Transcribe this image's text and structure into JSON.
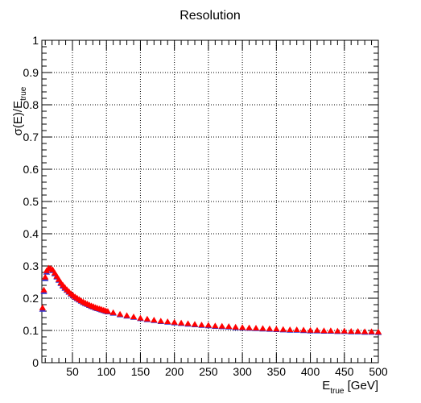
{
  "chart_data": {
    "type": "scatter",
    "title": "Resolution",
    "ylabel": {
      "main": "σ(E)/E",
      "sub": "true"
    },
    "xlabel": {
      "main": "E",
      "sub": "true",
      "unit": " [GeV]"
    },
    "xlim": [
      5,
      500
    ],
    "ylim": [
      0,
      1
    ],
    "x_ticks": [
      50,
      100,
      150,
      200,
      250,
      300,
      350,
      400,
      450,
      500
    ],
    "y_ticks": [
      "0",
      "0.1",
      "0.2",
      "0.3",
      "0.4",
      "0.5",
      "0.6",
      "0.7",
      "0.8",
      "0.9",
      "1"
    ],
    "grid": true,
    "series": [
      {
        "color": "#3333cc",
        "marker": "triangle-up",
        "points": [
          [
            6,
            0.165
          ],
          [
            8,
            0.22
          ],
          [
            10,
            0.26
          ],
          [
            12,
            0.28
          ],
          [
            15,
            0.29
          ],
          [
            18,
            0.29
          ],
          [
            21,
            0.285
          ],
          [
            24,
            0.275
          ],
          [
            27,
            0.265
          ],
          [
            30,
            0.255
          ],
          [
            33,
            0.245
          ],
          [
            36,
            0.237
          ],
          [
            39,
            0.23
          ],
          [
            42,
            0.224
          ],
          [
            45,
            0.218
          ],
          [
            48,
            0.212
          ],
          [
            51,
            0.207
          ],
          [
            54,
            0.202
          ],
          [
            57,
            0.198
          ],
          [
            60,
            0.194
          ],
          [
            63,
            0.19
          ],
          [
            66,
            0.186
          ],
          [
            69,
            0.183
          ],
          [
            72,
            0.18
          ],
          [
            75,
            0.177
          ],
          [
            78,
            0.174
          ],
          [
            81,
            0.172
          ],
          [
            84,
            0.169
          ],
          [
            87,
            0.167
          ],
          [
            90,
            0.165
          ],
          [
            93,
            0.163
          ],
          [
            96,
            0.161
          ],
          [
            99,
            0.159
          ],
          [
            102,
            0.157
          ],
          [
            110,
            0.153
          ],
          [
            120,
            0.148
          ],
          [
            130,
            0.144
          ],
          [
            140,
            0.14
          ],
          [
            150,
            0.136
          ],
          [
            160,
            0.133
          ],
          [
            170,
            0.13
          ],
          [
            180,
            0.127
          ],
          [
            190,
            0.125
          ],
          [
            200,
            0.123
          ],
          [
            210,
            0.121
          ],
          [
            220,
            0.119
          ],
          [
            230,
            0.117
          ],
          [
            240,
            0.115
          ],
          [
            250,
            0.114
          ],
          [
            260,
            0.112
          ],
          [
            270,
            0.111
          ],
          [
            280,
            0.11
          ],
          [
            290,
            0.108
          ],
          [
            300,
            0.107
          ],
          [
            310,
            0.106
          ],
          [
            320,
            0.105
          ],
          [
            330,
            0.104
          ],
          [
            340,
            0.103
          ],
          [
            350,
            0.102
          ],
          [
            360,
            0.101
          ],
          [
            370,
            0.1
          ],
          [
            380,
            0.1
          ],
          [
            390,
            0.099
          ],
          [
            400,
            0.098
          ],
          [
            410,
            0.098
          ],
          [
            420,
            0.097
          ],
          [
            430,
            0.097
          ],
          [
            440,
            0.096
          ],
          [
            450,
            0.096
          ],
          [
            460,
            0.095
          ],
          [
            470,
            0.095
          ],
          [
            480,
            0.094
          ],
          [
            490,
            0.094
          ],
          [
            500,
            0.093
          ]
        ]
      },
      {
        "color": "#ff0000",
        "marker": "triangle-up",
        "points": [
          [
            6,
            0.17
          ],
          [
            8,
            0.225
          ],
          [
            10,
            0.265
          ],
          [
            12,
            0.285
          ],
          [
            15,
            0.293
          ],
          [
            18,
            0.292
          ],
          [
            21,
            0.288
          ],
          [
            24,
            0.278
          ],
          [
            27,
            0.268
          ],
          [
            30,
            0.258
          ],
          [
            33,
            0.248
          ],
          [
            36,
            0.24
          ],
          [
            39,
            0.233
          ],
          [
            42,
            0.226
          ],
          [
            45,
            0.22
          ],
          [
            48,
            0.214
          ],
          [
            51,
            0.209
          ],
          [
            54,
            0.204
          ],
          [
            57,
            0.2
          ],
          [
            60,
            0.196
          ],
          [
            63,
            0.192
          ],
          [
            66,
            0.188
          ],
          [
            69,
            0.185
          ],
          [
            72,
            0.182
          ],
          [
            75,
            0.179
          ],
          [
            78,
            0.176
          ],
          [
            81,
            0.174
          ],
          [
            84,
            0.171
          ],
          [
            87,
            0.169
          ],
          [
            90,
            0.167
          ],
          [
            93,
            0.165
          ],
          [
            96,
            0.163
          ],
          [
            99,
            0.161
          ],
          [
            102,
            0.159
          ],
          [
            110,
            0.155
          ],
          [
            120,
            0.15
          ],
          [
            130,
            0.146
          ],
          [
            140,
            0.142
          ],
          [
            150,
            0.138
          ],
          [
            160,
            0.135
          ],
          [
            170,
            0.132
          ],
          [
            180,
            0.129
          ],
          [
            190,
            0.127
          ],
          [
            200,
            0.125
          ],
          [
            210,
            0.123
          ],
          [
            220,
            0.121
          ],
          [
            230,
            0.119
          ],
          [
            240,
            0.117
          ],
          [
            250,
            0.116
          ],
          [
            260,
            0.114
          ],
          [
            270,
            0.113
          ],
          [
            280,
            0.112
          ],
          [
            290,
            0.11
          ],
          [
            300,
            0.109
          ],
          [
            310,
            0.108
          ],
          [
            320,
            0.107
          ],
          [
            330,
            0.106
          ],
          [
            340,
            0.105
          ],
          [
            350,
            0.104
          ],
          [
            360,
            0.103
          ],
          [
            370,
            0.102
          ],
          [
            380,
            0.102
          ],
          [
            390,
            0.101
          ],
          [
            400,
            0.1
          ],
          [
            410,
            0.1
          ],
          [
            420,
            0.099
          ],
          [
            430,
            0.099
          ],
          [
            440,
            0.098
          ],
          [
            450,
            0.098
          ],
          [
            460,
            0.097
          ],
          [
            470,
            0.097
          ],
          [
            480,
            0.096
          ],
          [
            490,
            0.096
          ],
          [
            500,
            0.095
          ]
        ]
      }
    ]
  }
}
